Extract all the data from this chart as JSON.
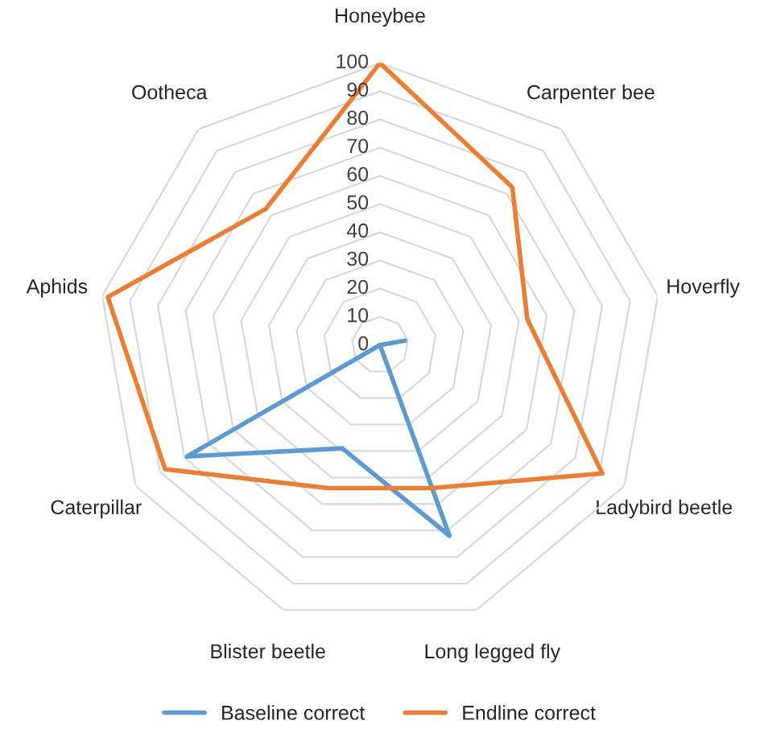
{
  "chart_data": {
    "type": "radar",
    "categories": [
      "Honeybee",
      "Carpenter bee",
      "Hoverfly",
      "Ladybird beetle",
      "Long legged fly",
      "Blister beetle",
      "Caterpillar",
      "Aphids",
      "Ootheca"
    ],
    "series": [
      {
        "name": "Baseline correct",
        "color": "#5b9bd5",
        "values": [
          0,
          0,
          9,
          0,
          72,
          39,
          79,
          0,
          0
        ]
      },
      {
        "name": "Endline correct",
        "color": "#ed7d31",
        "values": [
          100,
          73,
          53,
          91,
          54,
          54,
          88,
          98,
          63
        ]
      }
    ],
    "ylim": [
      0,
      100
    ],
    "yticks": [
      0,
      10,
      20,
      30,
      40,
      50,
      60,
      70,
      80,
      90,
      100
    ],
    "grid": true,
    "legend": "bottom",
    "marker": "none",
    "line_style": "solid"
  }
}
